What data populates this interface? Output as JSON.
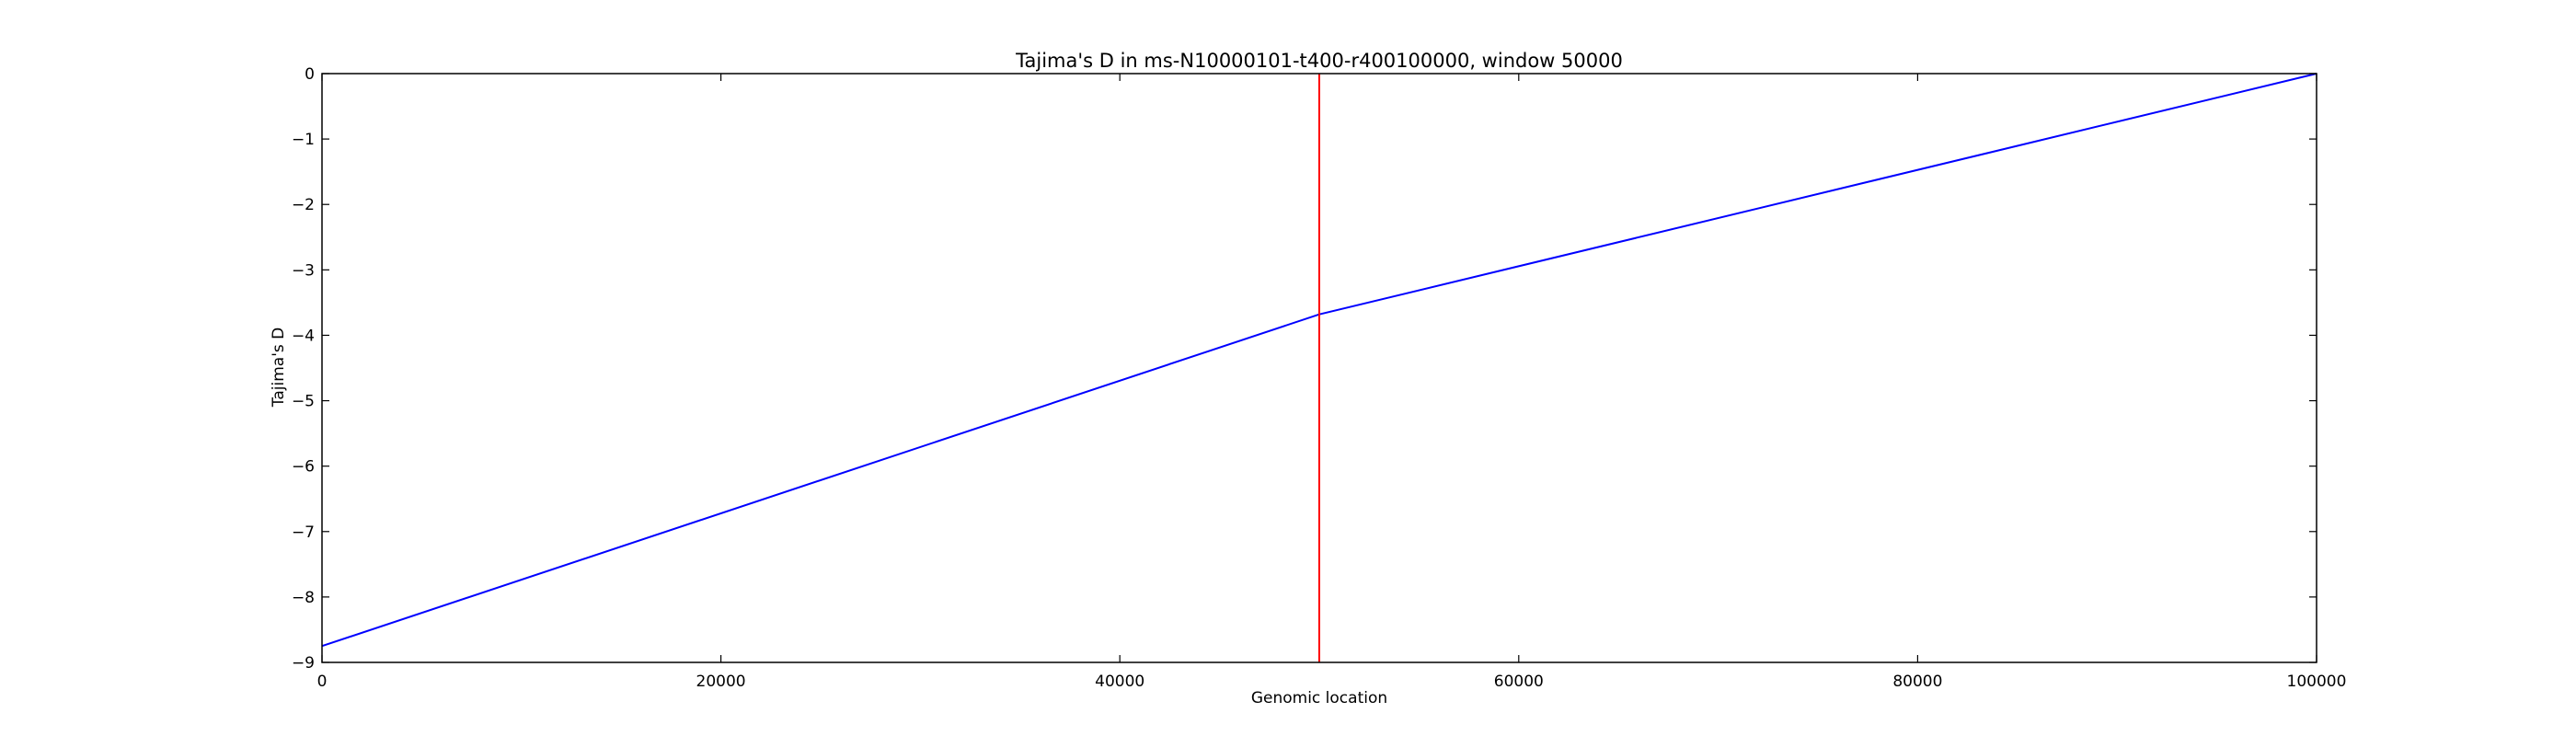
{
  "chart_data": {
    "type": "line",
    "title": "Tajima's D in ms-N10000101-t400-r400100000, window 50000",
    "xlabel": "Genomic location",
    "ylabel": "Tajima's D",
    "xlim": [
      0,
      100000
    ],
    "ylim": [
      -9,
      0
    ],
    "xticks": [
      0,
      20000,
      40000,
      60000,
      80000,
      100000
    ],
    "yticks": [
      0,
      -1,
      -2,
      -3,
      -4,
      -5,
      -6,
      -7,
      -8,
      -9
    ],
    "ytick_labels": [
      "0",
      "−1",
      "−2",
      "−3",
      "−4",
      "−5",
      "−6",
      "−7",
      "−8",
      "−9"
    ],
    "grid": false,
    "series": [
      {
        "x": [
          0,
          50000,
          100000
        ],
        "y": [
          -8.75,
          -3.68,
          0.0
        ],
        "color": "#0000ff"
      }
    ],
    "vlines": [
      {
        "x": 50000,
        "color": "#ff0000"
      }
    ]
  }
}
